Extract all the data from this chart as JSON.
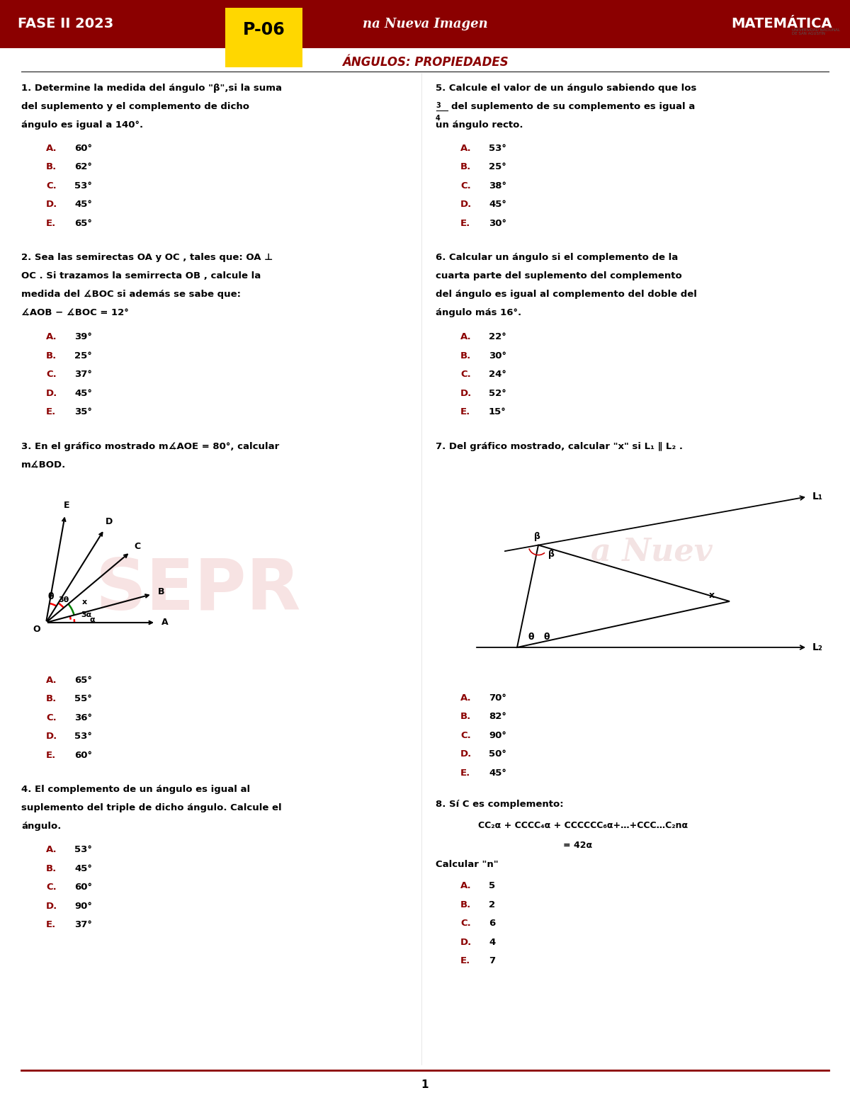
{
  "page_width": 12.0,
  "page_height": 15.53,
  "bg_color": "#ffffff",
  "header_bg": "#8B0000",
  "title_color": "#8B0000",
  "answer_letter_color": "#8B0000",
  "fase_text": "FASE II 2023",
  "p06_text": "P-06",
  "p06_bg": "#FFD700",
  "subtitle_text": "na Nueva Imagen",
  "materia_text": "MATEMÁTICA",
  "section_title": "ÁNGULOS: PROPIEDADES",
  "q1_options": [
    "A.",
    "B.",
    "C.",
    "D.",
    "E."
  ],
  "q1_answers": [
    "60°",
    "62°",
    "53°",
    "45°",
    "65°"
  ],
  "q2_options": [
    "A.",
    "B.",
    "C.",
    "D.",
    "E."
  ],
  "q2_answers": [
    "39°",
    "25°",
    "37°",
    "45°",
    "35°"
  ],
  "q3_options": [
    "A.",
    "B.",
    "C.",
    "D.",
    "E."
  ],
  "q3_answers": [
    "65°",
    "55°",
    "36°",
    "53°",
    "60°"
  ],
  "q4_options": [
    "A.",
    "B.",
    "C.",
    "D.",
    "E."
  ],
  "q4_answers": [
    "53°",
    "45°",
    "60°",
    "90°",
    "37°"
  ],
  "q5_options": [
    "A.",
    "B.",
    "C.",
    "D.",
    "E."
  ],
  "q5_answers": [
    "53°",
    "25°",
    "38°",
    "45°",
    "30°"
  ],
  "q6_options": [
    "A.",
    "B.",
    "C.",
    "D.",
    "E."
  ],
  "q6_answers": [
    "22°",
    "30°",
    "24°",
    "52°",
    "15°"
  ],
  "q7_options": [
    "A.",
    "B.",
    "C.",
    "D.",
    "E."
  ],
  "q7_answers": [
    "70°",
    "82°",
    "90°",
    "50°",
    "45°"
  ],
  "q8_options": [
    "A.",
    "B.",
    "C.",
    "D.",
    "E."
  ],
  "q8_answers": [
    "5",
    "2",
    "6",
    "4",
    "7"
  ],
  "page_number": "1",
  "footer_line_color": "#8B0000",
  "lc": "#8B0000"
}
